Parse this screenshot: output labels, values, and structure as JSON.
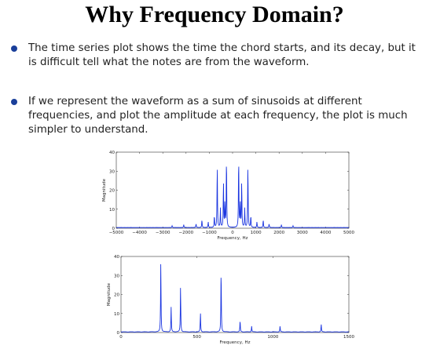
{
  "title": "Why Frequency Domain?",
  "bullets": [
    "The time series plot shows the time the chord starts, and its decay, but it is difficult tell what the notes are from the waveform.",
    "If we represent the waveform as a sum of sinusoids at different frequencies, and plot the amplitude at each frequency, the plot is much simpler to understand."
  ],
  "colors": {
    "line": "#1a35e0",
    "bullet": "#1a3f9a"
  },
  "chart_data": [
    {
      "type": "line",
      "xlabel": "Frequency, Hz",
      "ylabel": "Magnitude",
      "xlim": [
        -5000,
        5000
      ],
      "ylim": [
        0,
        40
      ],
      "xticks": [
        -5000,
        -4000,
        -3000,
        -2000,
        -1000,
        0,
        1000,
        2000,
        3000,
        4000,
        5000
      ],
      "yticks": [
        0,
        10,
        20,
        30,
        40
      ],
      "series": [
        {
          "peaks": [
            [
              262,
              37
            ],
            [
              330,
              13
            ],
            [
              392,
              24
            ],
            [
              523,
              10
            ],
            [
              659,
              33
            ],
            [
              784,
              6
            ],
            [
              1047,
              3
            ],
            [
              1318,
              4
            ],
            [
              -262,
              37
            ],
            [
              -330,
              13
            ],
            [
              -392,
              24
            ],
            [
              -523,
              10
            ],
            [
              -659,
              33
            ],
            [
              -784,
              6
            ],
            [
              -1047,
              3
            ],
            [
              -1318,
              4
            ],
            [
              1570,
              2
            ],
            [
              -1570,
              2
            ],
            [
              2100,
              1.5
            ],
            [
              -2100,
              1.5
            ],
            [
              2600,
              1
            ],
            [
              -2600,
              1
            ]
          ]
        }
      ]
    },
    {
      "type": "line",
      "xlabel": "Frequency, Hz",
      "ylabel": "Magnitude",
      "xlim": [
        0,
        1500
      ],
      "ylim": [
        0,
        40
      ],
      "xticks": [
        0,
        500,
        1000,
        1500
      ],
      "yticks": [
        0,
        10,
        20,
        30,
        40
      ],
      "series": [
        {
          "peaks": [
            [
              262,
              37
            ],
            [
              330,
              13
            ],
            [
              392,
              24
            ],
            [
              523,
              10
            ],
            [
              659,
              33
            ],
            [
              784,
              6
            ],
            [
              860,
              3
            ],
            [
              1047,
              3
            ],
            [
              1318,
              4
            ]
          ]
        }
      ]
    }
  ]
}
